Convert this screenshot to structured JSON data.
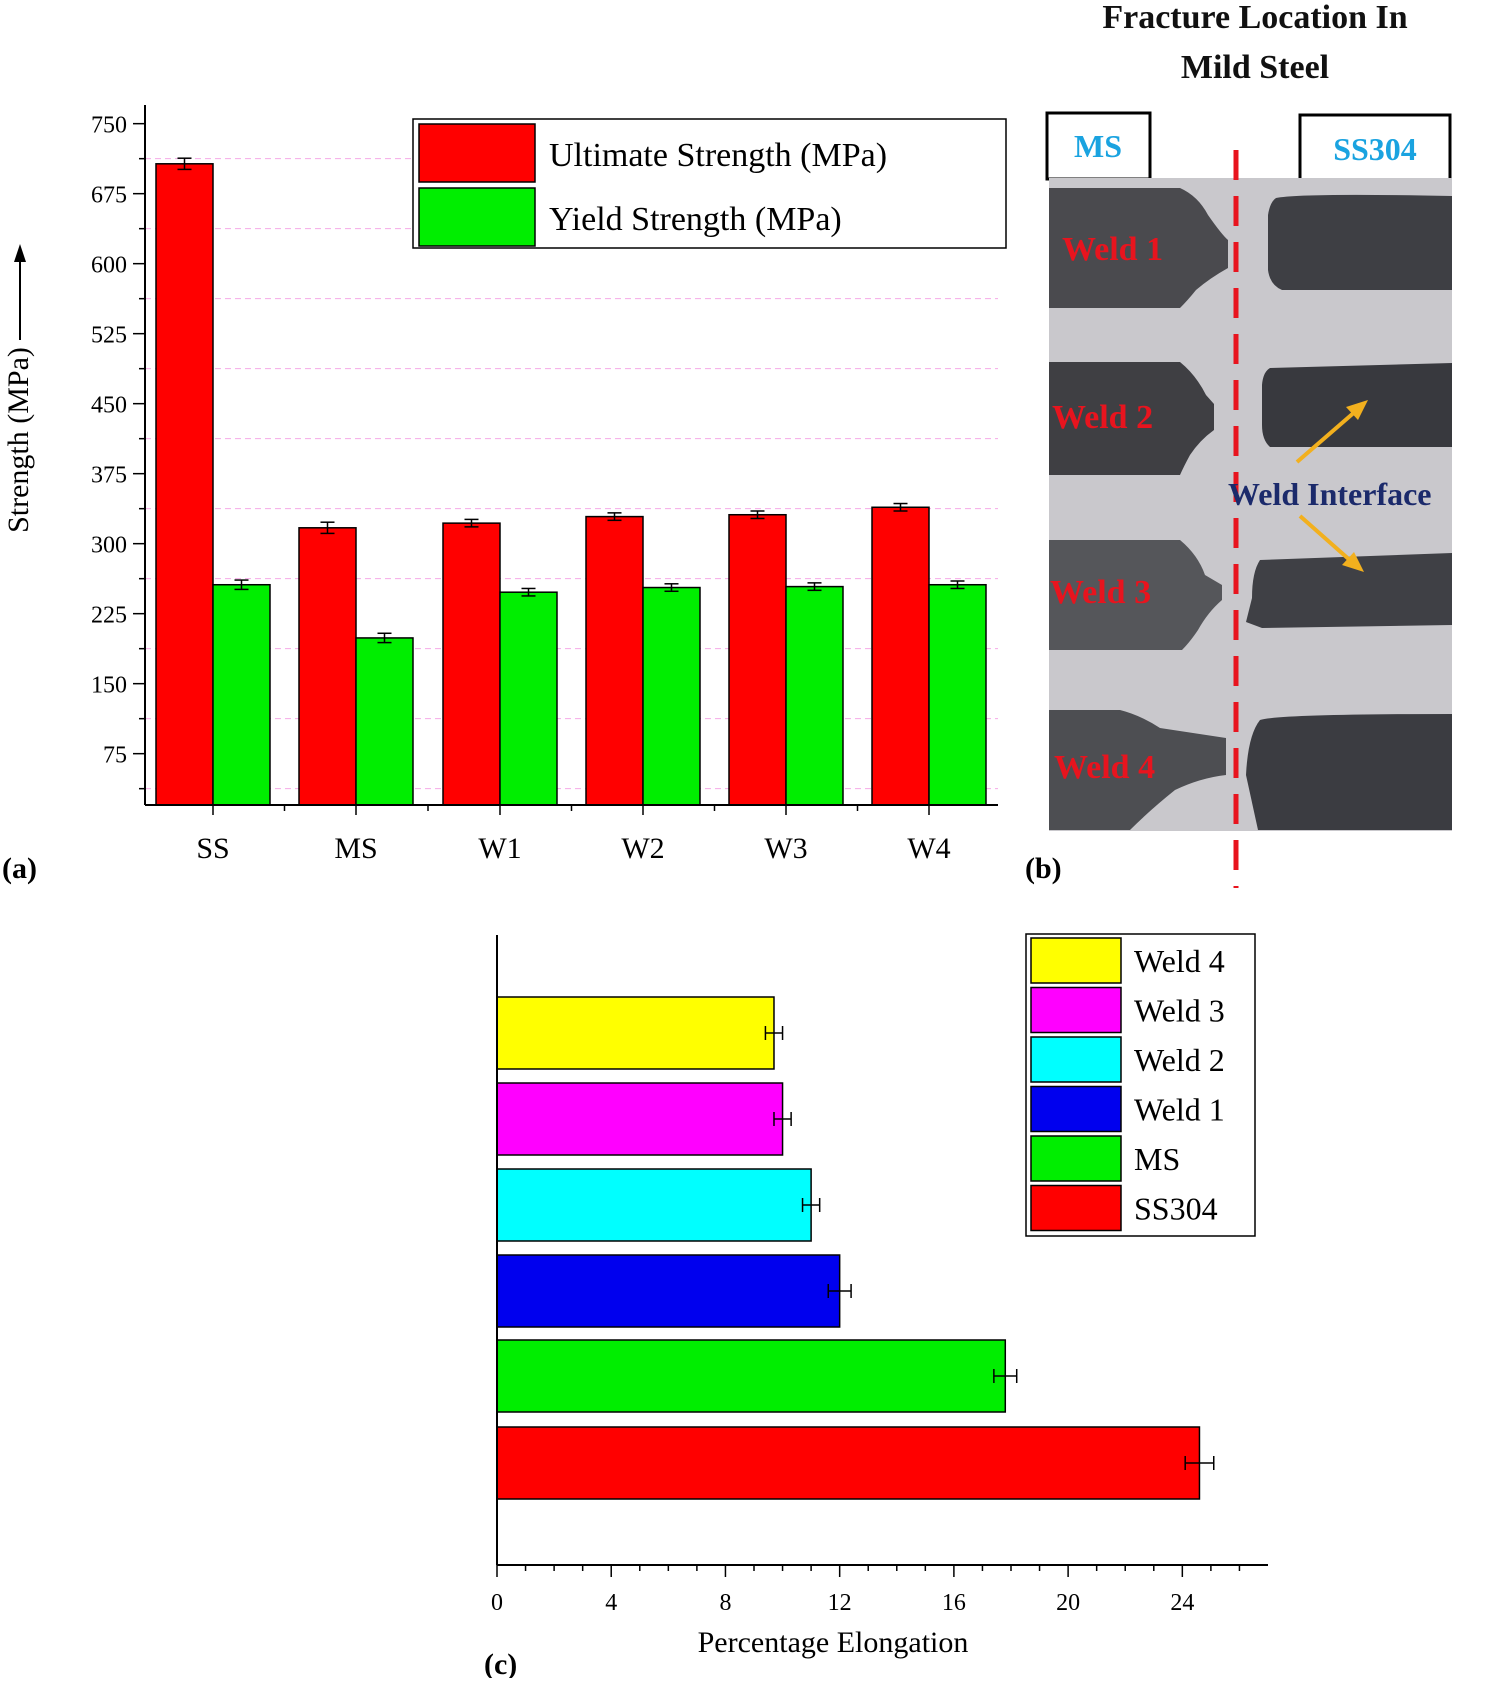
{
  "panel_labels": {
    "a": "(a)",
    "b": "(b)",
    "c": "(c)"
  },
  "colors": {
    "ultimate": "#ff0000",
    "yield": "#00ee00",
    "weld4": "#ffff00",
    "weld3": "#ff00ff",
    "weld2": "#00ffff",
    "weld1": "#0000ee",
    "ms": "#00ee00",
    "ss304": "#ff0000",
    "gridline": "#f5a9e6",
    "weld_label_red": "#e8141e",
    "box_label_blue": "#1aa3e0",
    "interface_navy": "#1b2a6b",
    "arrow_orange": "#f2b01e",
    "dashed_red": "#e8141e"
  },
  "photo": {
    "title_line1": "Fracture Location In",
    "title_line2": "Mild Steel",
    "left_box": "MS",
    "right_box": "SS304",
    "weld_labels": [
      "Weld 1",
      "Weld 2",
      "Weld 3",
      "Weld 4"
    ],
    "interface_label": "Weld Interface"
  },
  "chart_data": [
    {
      "type": "bar",
      "panel": "(a)",
      "categories": [
        "SS",
        "MS",
        "W1",
        "W2",
        "W3",
        "W4"
      ],
      "series": [
        {
          "name": "Ultimate Strength (MPa)",
          "values": [
            707,
            317,
            322,
            329,
            331,
            339
          ],
          "errors": [
            6,
            6,
            4,
            4,
            4,
            4
          ]
        },
        {
          "name": "Yield Strength (MPa)",
          "values": [
            256,
            199,
            248,
            253,
            254,
            256
          ],
          "errors": [
            5,
            5,
            4,
            4,
            4,
            4
          ]
        }
      ],
      "ylabel": "Strength (MPa)",
      "xlabel": "",
      "ylim": [
        20,
        770
      ],
      "yticks": [
        75,
        150,
        225,
        300,
        375,
        450,
        525,
        600,
        675,
        750
      ],
      "grid": "dashed horizontal",
      "legend": "top-right"
    },
    {
      "type": "bar",
      "orientation": "horizontal",
      "panel": "(c)",
      "categories": [
        "SS304",
        "MS",
        "Weld 1",
        "Weld 2",
        "Weld 3",
        "Weld 4"
      ],
      "values": [
        24.6,
        17.8,
        12.0,
        11.0,
        10.0,
        9.7
      ],
      "errors": [
        0.5,
        0.4,
        0.4,
        0.3,
        0.3,
        0.3
      ],
      "xlabel": "Percentage Elongation",
      "ylabel": "",
      "xlim": [
        0,
        27
      ],
      "xticks": [
        0,
        4,
        8,
        12,
        16,
        20,
        24
      ],
      "legend_order": [
        "Weld 4",
        "Weld 3",
        "Weld 2",
        "Weld 1",
        "MS",
        "SS304"
      ],
      "legend": "top-right"
    }
  ]
}
